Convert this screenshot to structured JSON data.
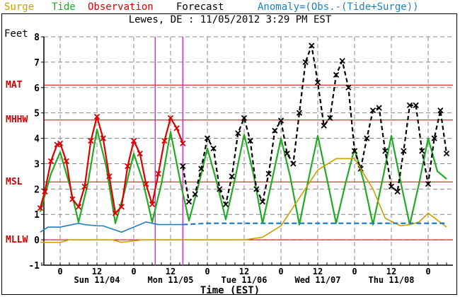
{
  "legend": {
    "surge": {
      "label": "Surge",
      "color": "#c8a000"
    },
    "tide": {
      "label": "Tide",
      "color": "#22aa22"
    },
    "observation": {
      "label": "Observation",
      "color": "#dd0000"
    },
    "forecast": {
      "label": "Forecast",
      "color": "#000000"
    },
    "anomaly": {
      "label": "Anomaly=(Obs.-(Tide+Surge))",
      "color": "#1f7fc0"
    }
  },
  "header": {
    "title": "Lewes, DE : 11/05/2012 3:29 PM EST"
  },
  "yaxis": {
    "unit": "Feet",
    "ticks": [
      "8",
      "7",
      "6",
      "5",
      "4",
      "3",
      "2",
      "1",
      "0",
      "-1"
    ]
  },
  "datums": [
    {
      "label": "MAT",
      "value": 6.1
    },
    {
      "label": "MHHW",
      "value": 4.72
    },
    {
      "label": "MSL",
      "value": 2.28
    },
    {
      "label": "MLLW",
      "value": 0.0
    }
  ],
  "xaxis": {
    "title": "Time (EST)",
    "hour_ticks": [
      "0",
      "12",
      "0",
      "12",
      "0",
      "12",
      "0",
      "12",
      "0",
      "12",
      "0"
    ],
    "day_labels": [
      "Sun 11/04",
      "Mon 11/05",
      "Tue 11/06",
      "Wed 11/07",
      "Thu 11/08"
    ]
  },
  "chart_data": {
    "type": "line",
    "title": "Lewes, DE : 11/05/2012 3:29 PM EST",
    "xlabel": "Time (EST)",
    "ylabel": "Feet",
    "ylim": [
      -1,
      8
    ],
    "grid": true,
    "legend_position": "top",
    "x_range_hours": [
      -7,
      126
    ],
    "x_unit": "hours since Sun 11/04 00:00 EST",
    "vertical_markers_hours": [
      31,
      40
    ],
    "reference_lines": {
      "MAT": 6.1,
      "MHHW": 4.72,
      "MSL": 2.28,
      "MLLW": 0.0
    },
    "series": [
      {
        "name": "Tide",
        "color": "#22aa22",
        "x": [
          -6.5,
          -3,
          0,
          3,
          6,
          9,
          12,
          15,
          18,
          21,
          24,
          27,
          30,
          33,
          36,
          39,
          42,
          45,
          48,
          51,
          54,
          57,
          60,
          63,
          66,
          69,
          72,
          75,
          78,
          81,
          84,
          87,
          90,
          93,
          96,
          99,
          102,
          105,
          108,
          111,
          114,
          117,
          120,
          123,
          126
        ],
        "values": [
          1.1,
          2.6,
          3.45,
          2.2,
          0.7,
          2.2,
          4.35,
          2.9,
          0.65,
          1.9,
          3.4,
          2.3,
          0.7,
          2.2,
          4.25,
          2.4,
          0.75,
          2.1,
          3.6,
          2.3,
          0.8,
          2.4,
          4.15,
          2.6,
          0.65,
          2.3,
          4.0,
          2.5,
          0.6,
          2.4,
          4.1,
          2.4,
          0.65,
          2.2,
          3.6,
          2.3,
          0.6,
          2.3,
          4.1,
          2.3,
          0.6,
          2.2,
          4.0,
          2.7,
          2.4
        ]
      },
      {
        "name": "Observation",
        "color": "#dd0000",
        "x": [
          -6.5,
          -5,
          -3,
          -1,
          0,
          2,
          4,
          6,
          8,
          10,
          12,
          14,
          16,
          18,
          20,
          22,
          24,
          26,
          28,
          30,
          32,
          34,
          36,
          38,
          40
        ],
        "values": [
          1.25,
          1.9,
          3.1,
          3.75,
          3.8,
          3.1,
          1.6,
          1.3,
          2.1,
          3.9,
          4.85,
          4.0,
          2.5,
          1.05,
          1.3,
          2.9,
          3.9,
          3.4,
          2.2,
          1.4,
          2.6,
          3.9,
          4.8,
          4.4,
          3.8
        ]
      },
      {
        "name": "Forecast",
        "color": "#000000",
        "x": [
          40,
          42,
          44,
          46,
          48,
          50,
          52,
          54,
          56,
          58,
          60,
          62,
          64,
          66,
          68,
          70,
          72,
          74,
          76,
          78,
          80,
          82,
          84,
          86,
          88,
          90,
          92,
          94,
          96,
          98,
          100,
          102,
          104,
          106,
          108,
          110,
          112,
          114,
          116,
          118,
          120,
          122,
          124,
          126
        ],
        "values": [
          2.9,
          1.5,
          1.8,
          2.8,
          4.0,
          3.6,
          2.0,
          1.4,
          2.5,
          4.2,
          4.8,
          3.9,
          2.0,
          1.5,
          2.6,
          4.3,
          4.7,
          3.4,
          3.0,
          5.0,
          7.0,
          7.65,
          6.2,
          4.5,
          4.8,
          6.5,
          7.05,
          6.0,
          3.5,
          2.8,
          4.0,
          5.1,
          5.2,
          3.5,
          2.1,
          1.9,
          3.5,
          5.3,
          5.3,
          3.5,
          2.2,
          4.0,
          5.1,
          3.4
        ]
      },
      {
        "name": "Surge",
        "color": "#c8a000",
        "x": [
          -6.5,
          0,
          3,
          5,
          9,
          17,
          20,
          27,
          30,
          37,
          42,
          48,
          54,
          60,
          66,
          72,
          78,
          84,
          90,
          96,
          102,
          106,
          111,
          114,
          117,
          120,
          126
        ],
        "values": [
          -0.1,
          -0.1,
          0.0,
          0.0,
          0.0,
          0.0,
          -0.1,
          0.0,
          0.0,
          0.0,
          0.0,
          0.0,
          0.0,
          0.0,
          0.1,
          0.55,
          1.65,
          2.75,
          3.2,
          3.2,
          2.0,
          0.85,
          0.55,
          0.6,
          0.7,
          1.05,
          0.5
        ]
      },
      {
        "name": "Anomaly",
        "color": "#1f7fc0",
        "x": [
          -6.5,
          -4,
          0,
          4,
          6,
          8,
          12,
          14,
          20,
          24,
          28,
          32,
          36,
          40,
          48,
          60,
          72,
          84,
          96,
          108,
          120,
          126
        ],
        "values": [
          0.3,
          0.5,
          0.5,
          0.6,
          0.65,
          0.6,
          0.55,
          0.55,
          0.3,
          0.5,
          0.7,
          0.6,
          0.6,
          0.6,
          0.65,
          0.65,
          0.65,
          0.65,
          0.65,
          0.65,
          0.65,
          0.65
        ]
      }
    ]
  }
}
